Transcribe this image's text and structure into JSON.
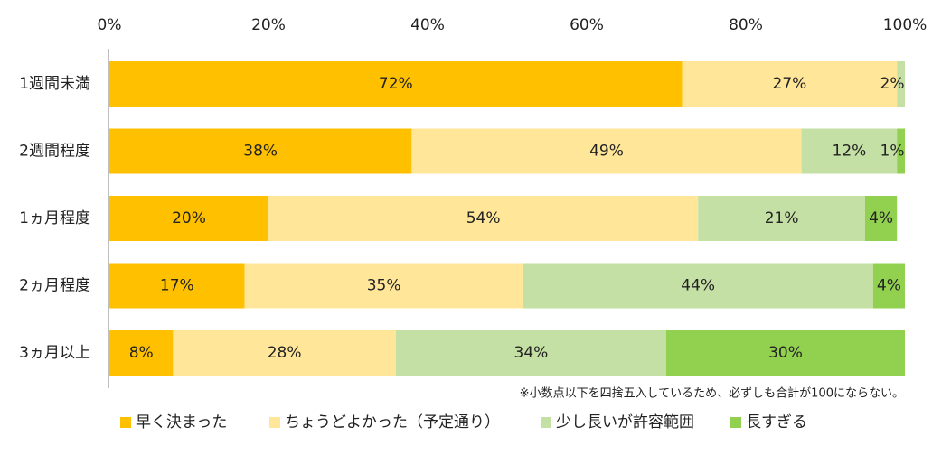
{
  "chart_data": {
    "type": "bar",
    "orientation": "horizontal",
    "stacked": true,
    "xlim": [
      0,
      100
    ],
    "x_ticks": [
      "0%",
      "20%",
      "40%",
      "60%",
      "80%",
      "100%"
    ],
    "categories": [
      "1週間未満",
      "2週間程度",
      "1ヵ月程度",
      "2ヵ月程度",
      "3ヵ月以上"
    ],
    "series": [
      {
        "name": "早く決まった",
        "color": "#FFC000",
        "values": [
          72,
          38,
          20,
          17,
          8
        ],
        "labels": [
          "72%",
          "38%",
          "20%",
          "17%",
          "8%"
        ]
      },
      {
        "name": "ちょうどよかった（予定通り）",
        "color": "#FFE699",
        "values": [
          27,
          49,
          54,
          35,
          28
        ],
        "labels": [
          "27%",
          "49%",
          "54%",
          "35%",
          "28%"
        ]
      },
      {
        "name": "少し長いが許容範囲",
        "color": "#C5E0A5",
        "values": [
          2,
          12,
          21,
          44,
          34
        ],
        "labels": [
          "2%",
          "12%",
          "21%",
          "44%",
          "34%"
        ]
      },
      {
        "name": "長すぎる",
        "color": "#92D050",
        "values": [
          0,
          1,
          4,
          4,
          30
        ],
        "labels": [
          "",
          "1%",
          "4%",
          "4%",
          "30%"
        ]
      }
    ],
    "note": "※小数点以下を四捨五入しているため、必ずしも合計が100にならない。",
    "legend_position": "bottom",
    "grid": false
  }
}
